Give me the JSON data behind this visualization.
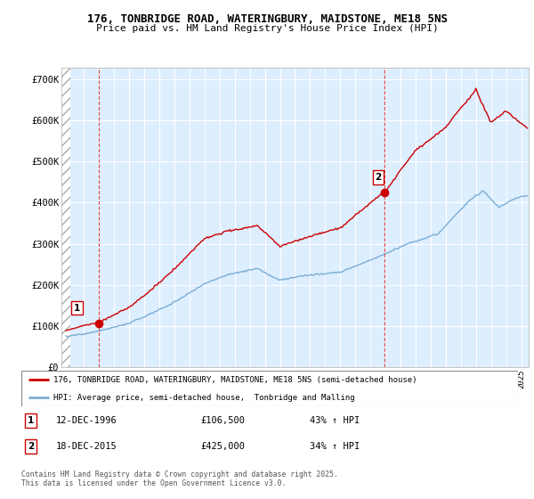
{
  "title_line1": "176, TONBRIDGE ROAD, WATERINGBURY, MAIDSTONE, ME18 5NS",
  "title_line2": "Price paid vs. HM Land Registry's House Price Index (HPI)",
  "xlim_start": 1994.5,
  "xlim_end": 2025.5,
  "ylim": [
    0,
    730000
  ],
  "yticks": [
    0,
    100000,
    200000,
    300000,
    400000,
    500000,
    600000,
    700000
  ],
  "ytick_labels": [
    "£0",
    "£100K",
    "£200K",
    "£300K",
    "£400K",
    "£500K",
    "£600K",
    "£700K"
  ],
  "hatch_end": 1995.08,
  "sale1_x": 1996.96,
  "sale1_y": 106500,
  "sale2_x": 2015.96,
  "sale2_y": 425000,
  "sale1_label": "1",
  "sale2_label": "2",
  "red_color": "#cc0000",
  "blue_color": "#7aadd4",
  "bg_blue": "#ddeeff",
  "legend_entry1": "176, TONBRIDGE ROAD, WATERINGBURY, MAIDSTONE, ME18 5NS (semi-detached house)",
  "legend_entry2": "HPI: Average price, semi-detached house,  Tonbridge and Malling",
  "annotation1_date": "12-DEC-1996",
  "annotation1_price": "£106,500",
  "annotation1_hpi": "43% ↑ HPI",
  "annotation2_date": "18-DEC-2015",
  "annotation2_price": "£425,000",
  "annotation2_hpi": "34% ↑ HPI",
  "footer": "Contains HM Land Registry data © Crown copyright and database right 2025.\nThis data is licensed under the Open Government Licence v3.0."
}
